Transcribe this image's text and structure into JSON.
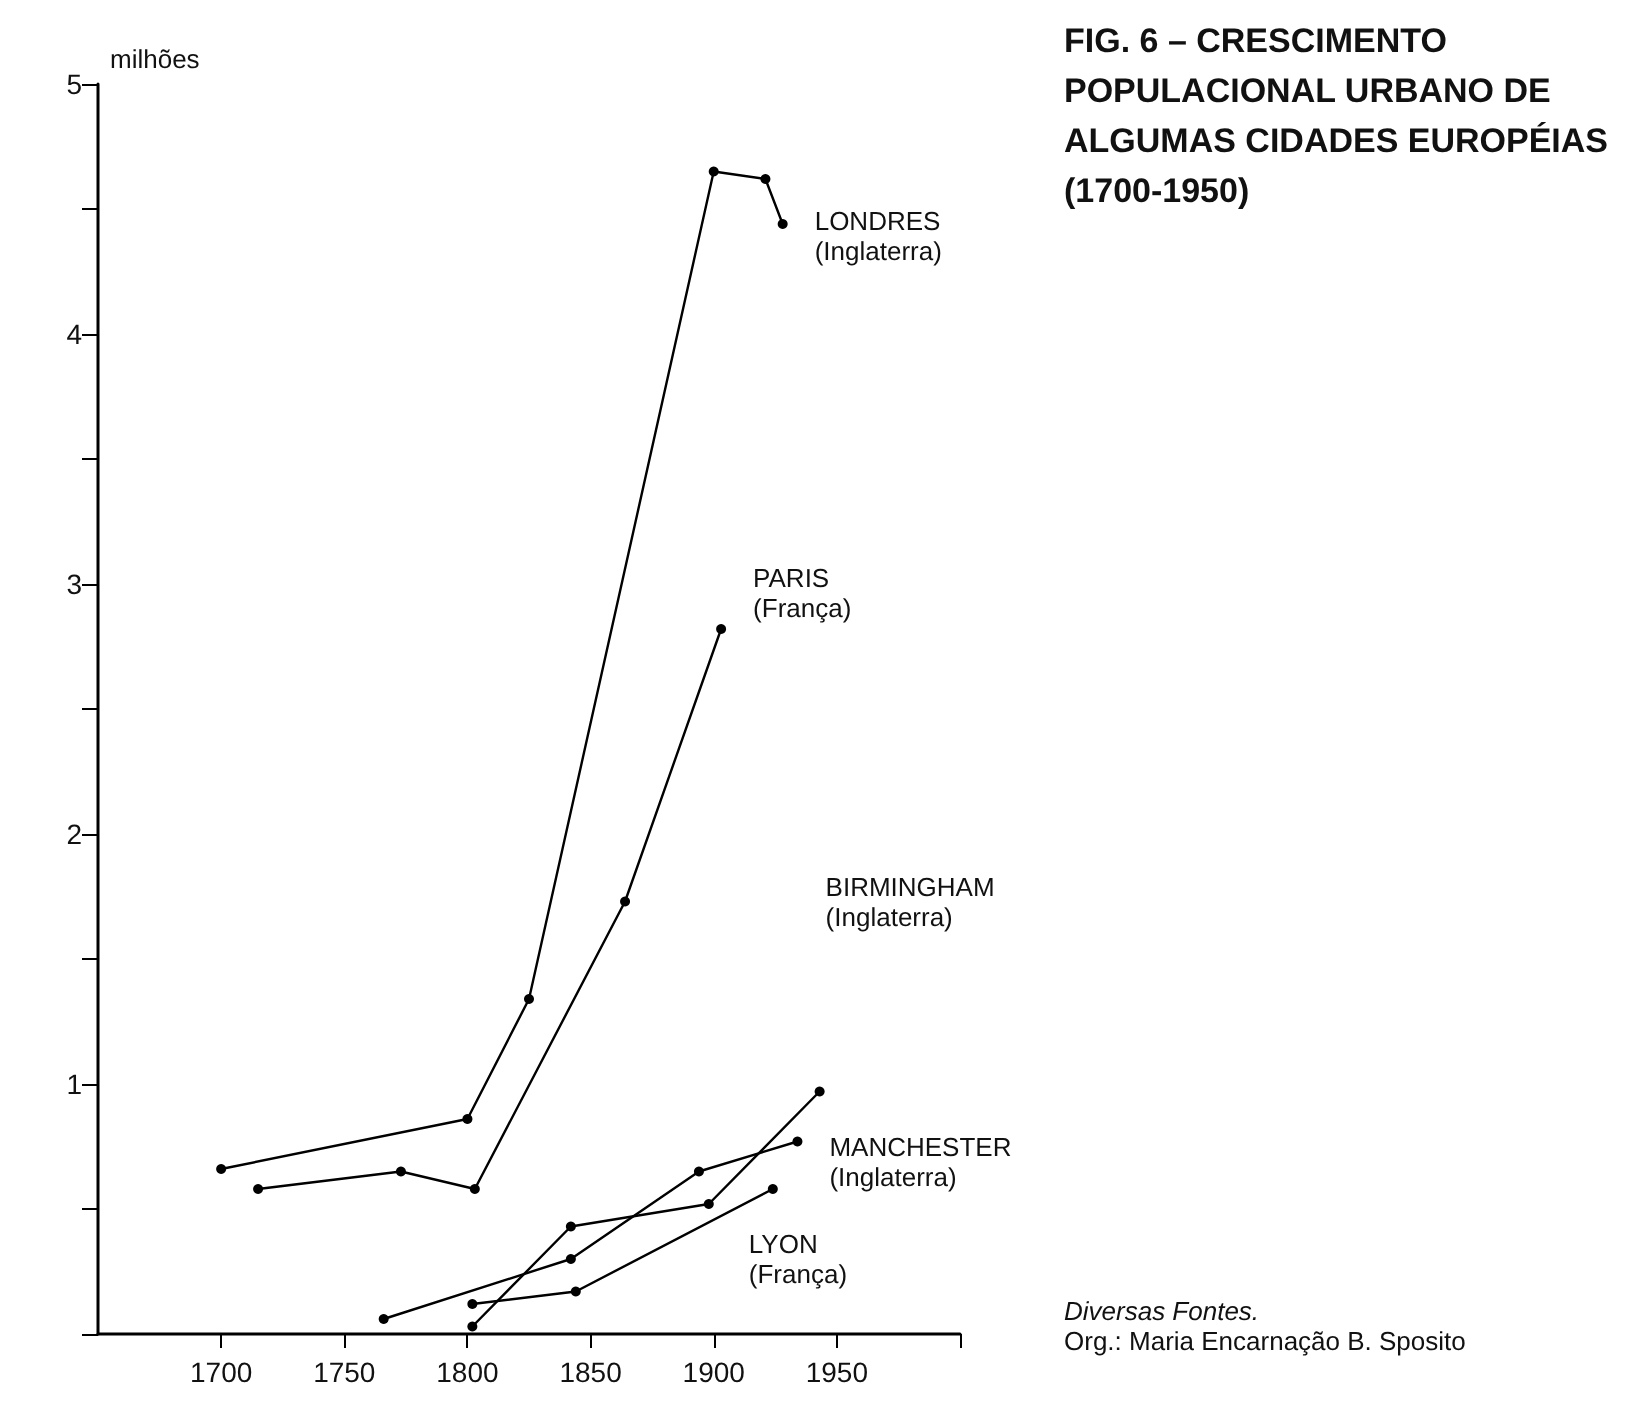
{
  "chart_data": {
    "type": "line",
    "title": "FIG. 6 – CRESCIMENTO POPULACIONAL URBANO DE ALGUMAS CIDADES EUROPÉIAS (1700-1950)",
    "ylabel": "milhões",
    "annotations": [
      "Diversas Fontes.",
      "Org.: Maria Encarnação B. Sposito"
    ],
    "xlim": [
      1650,
      2000
    ],
    "xticks": [
      1700,
      1750,
      1800,
      1850,
      1900,
      1950,
      {
        "value": 2000,
        "label": null
      }
    ],
    "ylim": [
      0,
      5
    ],
    "yticks": [
      {
        "value": 0,
        "label": null
      },
      {
        "value": 0.5,
        "label": null
      },
      1,
      {
        "value": 1.5,
        "label": null
      },
      2,
      {
        "value": 2.5,
        "label": null
      },
      3,
      {
        "value": 3.5,
        "label": null
      },
      4,
      {
        "value": 4.5,
        "label": null
      },
      5
    ],
    "grid": false,
    "legend": false,
    "marker": "circle",
    "line_style": "solid",
    "series": [
      {
        "name": "LONDRES\n(Inglaterra)",
        "color": "#000000",
        "x": [
          1700,
          1800,
          1825,
          1900,
          1921,
          1928
        ],
        "values": [
          0.66,
          0.86,
          1.34,
          4.65,
          4.62,
          4.44
        ]
      },
      {
        "name": "PARIS\n(França)",
        "color": "#000000",
        "x": [
          1715,
          1773,
          1803,
          1864,
          1903
        ],
        "values": [
          0.58,
          0.65,
          0.58,
          1.73,
          2.82
        ]
      },
      {
        "name": "BIRMINGHAM\n(Inglaterra)",
        "color": "#000000",
        "x": [
          1802,
          1842,
          1898,
          1943
        ],
        "values": [
          0.03,
          0.43,
          0.52,
          0.97
        ]
      },
      {
        "name": "MANCHESTER\n(Inglaterra)",
        "color": "#000000",
        "x": [
          1766,
          1842,
          1894,
          1934
        ],
        "values": [
          0.06,
          0.3,
          0.65,
          0.77
        ]
      },
      {
        "name": "LYON\n(França)",
        "color": "#000000",
        "x": [
          1802,
          1844,
          1924
        ],
        "values": [
          0.12,
          0.17,
          0.58
        ]
      }
    ]
  }
}
